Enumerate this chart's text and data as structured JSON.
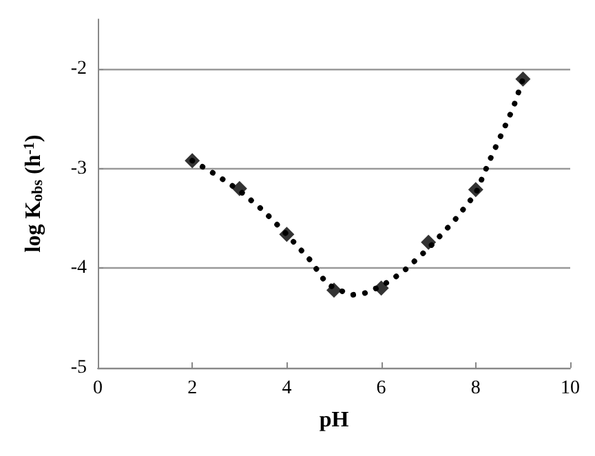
{
  "chart_data": {
    "type": "scatter",
    "xlabel": "pH",
    "ylabel": "log K$_{obs}$ (h$^{-1}$)",
    "xlim": [
      0,
      10
    ],
    "xticks": [
      0,
      2,
      4,
      6,
      8,
      10
    ],
    "ylim": [
      -5,
      -1.5
    ],
    "yticks": [
      -5,
      -4,
      -3,
      -2
    ],
    "grid": "y",
    "marker": "diamond",
    "series": [
      {
        "color": "#000000",
        "x": [
          2,
          3,
          4,
          5,
          6,
          7,
          8,
          9
        ],
        "values": [
          -2.92,
          -3.2,
          -3.66,
          -4.22,
          -4.2,
          -3.74,
          -3.21,
          -2.1
        ]
      },
      {
        "type": "line",
        "color": "#000000",
        "line_style": "dotted",
        "marker": "none",
        "x": [
          2,
          2.5,
          3,
          3.5,
          4,
          4.5,
          4.85,
          5.35,
          5.65,
          6,
          6.45,
          7,
          7.55,
          8,
          8.3,
          8.55,
          8.8,
          9
        ],
        "values": [
          -2.92,
          -3.06,
          -3.22,
          -3.42,
          -3.66,
          -3.92,
          -4.16,
          -4.27,
          -4.25,
          -4.18,
          -4.04,
          -3.8,
          -3.52,
          -3.25,
          -2.91,
          -2.65,
          -2.38,
          -2.1
        ]
      }
    ]
  }
}
